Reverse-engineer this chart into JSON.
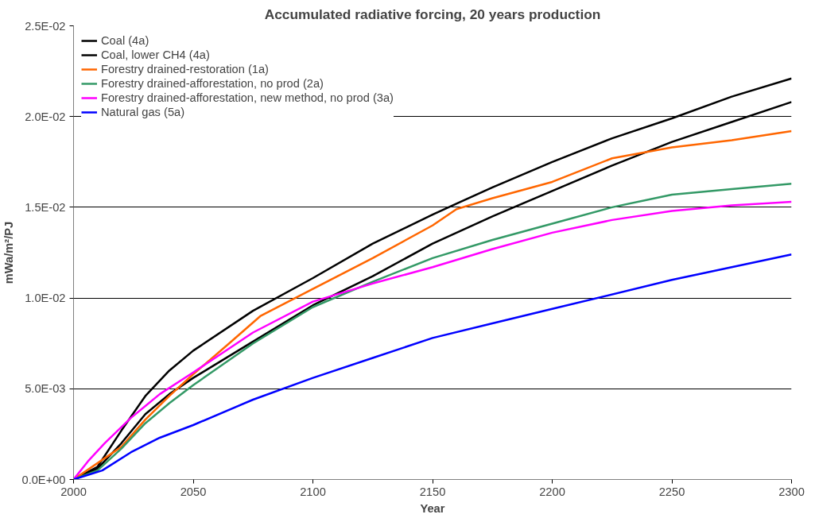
{
  "chart_data": {
    "type": "line",
    "title": "Accumulated radiative forcing, 20 years production",
    "xlabel": "Year",
    "ylabel": "mWa/m²/PJ",
    "xlim": [
      2000,
      2300
    ],
    "xticks": [
      2000,
      2050,
      2100,
      2150,
      2200,
      2250,
      2300
    ],
    "ylim": [
      0,
      0.025
    ],
    "yticks": [
      {
        "value": 0,
        "label": "0.0E+00"
      },
      {
        "value": 0.005,
        "label": "5.0E-03"
      },
      {
        "value": 0.01,
        "label": "1.0E-02"
      },
      {
        "value": 0.015,
        "label": "1.5E-02"
      },
      {
        "value": 0.02,
        "label": "2.0E-02"
      },
      {
        "value": 0.025,
        "label": "2.5E-02"
      }
    ],
    "grid": "y",
    "legend": "top left",
    "marker": "none",
    "line_style": "solid",
    "series": [
      {
        "name": "Coal (4a)",
        "color": "#000000",
        "x": [
          2000,
          2010,
          2020,
          2030,
          2040,
          2050,
          2075,
          2100,
          2125,
          2150,
          2175,
          2200,
          2225,
          2250,
          2275,
          2300
        ],
        "values": [
          0,
          0.0007,
          0.0027,
          0.0046,
          0.006,
          0.0071,
          0.0093,
          0.0111,
          0.013,
          0.0146,
          0.0161,
          0.0175,
          0.0188,
          0.0199,
          0.0211,
          0.0221
        ]
      },
      {
        "name": "Coal, lower CH4 (4a)",
        "color": "#000000",
        "x": [
          2000,
          2010,
          2020,
          2030,
          2040,
          2050,
          2075,
          2100,
          2125,
          2150,
          2175,
          2200,
          2225,
          2250,
          2275,
          2300
        ],
        "values": [
          0,
          0.0006,
          0.002,
          0.0036,
          0.0047,
          0.0056,
          0.0076,
          0.0096,
          0.0112,
          0.013,
          0.0145,
          0.0159,
          0.0173,
          0.0186,
          0.0197,
          0.0208
        ]
      },
      {
        "name": "Forestry drained-restoration (1a)",
        "color": "#ff6600",
        "x": [
          2000,
          2020,
          2030,
          2040,
          2050,
          2065,
          2078,
          2100,
          2125,
          2150,
          2160,
          2175,
          2200,
          2225,
          2250,
          2275,
          2300
        ],
        "values": [
          0,
          0.0018,
          0.0033,
          0.0046,
          0.0058,
          0.0075,
          0.009,
          0.0105,
          0.0122,
          0.014,
          0.0149,
          0.0155,
          0.0164,
          0.0177,
          0.0183,
          0.0187,
          0.0192
        ]
      },
      {
        "name": "Forestry drained-afforestation, no prod (2a)",
        "color": "#339966",
        "x": [
          2000,
          2010,
          2020,
          2030,
          2040,
          2050,
          2075,
          2100,
          2125,
          2150,
          2175,
          2200,
          2225,
          2250,
          2275,
          2300
        ],
        "values": [
          0,
          0.0005,
          0.0017,
          0.0031,
          0.0042,
          0.0052,
          0.0075,
          0.0095,
          0.0109,
          0.0122,
          0.0132,
          0.0141,
          0.015,
          0.0157,
          0.016,
          0.0163
        ]
      },
      {
        "name": "Forestry drained-afforestation, new method, no prod (3a)",
        "color": "#ff00ff",
        "x": [
          2000,
          2006,
          2013,
          2024,
          2036,
          2050,
          2075,
          2100,
          2125,
          2150,
          2175,
          2200,
          2225,
          2250,
          2275,
          2300
        ],
        "values": [
          0,
          0.001,
          0.002,
          0.0034,
          0.0047,
          0.0059,
          0.0081,
          0.0098,
          0.0108,
          0.0117,
          0.0127,
          0.0136,
          0.0143,
          0.0148,
          0.0151,
          0.0153
        ]
      },
      {
        "name": "Natural gas (5a)",
        "color": "#0000ff",
        "x": [
          2000,
          2012,
          2024,
          2036,
          2050,
          2075,
          2100,
          2125,
          2150,
          2175,
          2200,
          2250,
          2300
        ],
        "values": [
          0,
          0.0005,
          0.0015,
          0.0023,
          0.003,
          0.0044,
          0.0056,
          0.0067,
          0.0078,
          0.0086,
          0.0094,
          0.011,
          0.0124
        ]
      }
    ]
  }
}
